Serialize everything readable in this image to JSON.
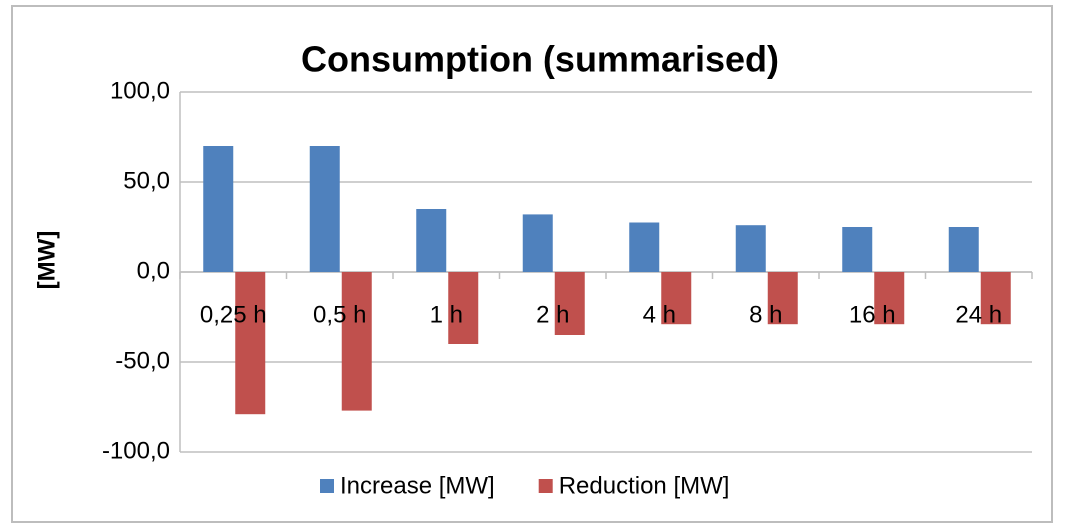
{
  "chart_data": {
    "type": "bar",
    "title": "Consumption (summarised)",
    "y_label": "[MW]",
    "categories": [
      "0,25 h",
      "0,5 h",
      "1 h",
      "2 h",
      "4 h",
      "8 h",
      "16 h",
      "24 h"
    ],
    "series": [
      {
        "name": "Increase [MW]",
        "color": "#4f81bd",
        "values": [
          70,
          70,
          35,
          32,
          27.5,
          26,
          25,
          25
        ]
      },
      {
        "name": "Reduction [MW]",
        "color": "#c0504d",
        "values": [
          -79,
          -77,
          -40,
          -35,
          -29,
          -29,
          -29,
          -29
        ]
      }
    ],
    "ylim": [
      -100,
      100
    ],
    "yticks": [
      {
        "value": -100,
        "label": "-100,0"
      },
      {
        "value": -50,
        "label": "-50,0"
      },
      {
        "value": 0,
        "label": "0,0"
      },
      {
        "value": 50,
        "label": "50,0"
      },
      {
        "value": 100,
        "label": "100,0"
      }
    ],
    "grid": true,
    "legend": "bottom"
  }
}
